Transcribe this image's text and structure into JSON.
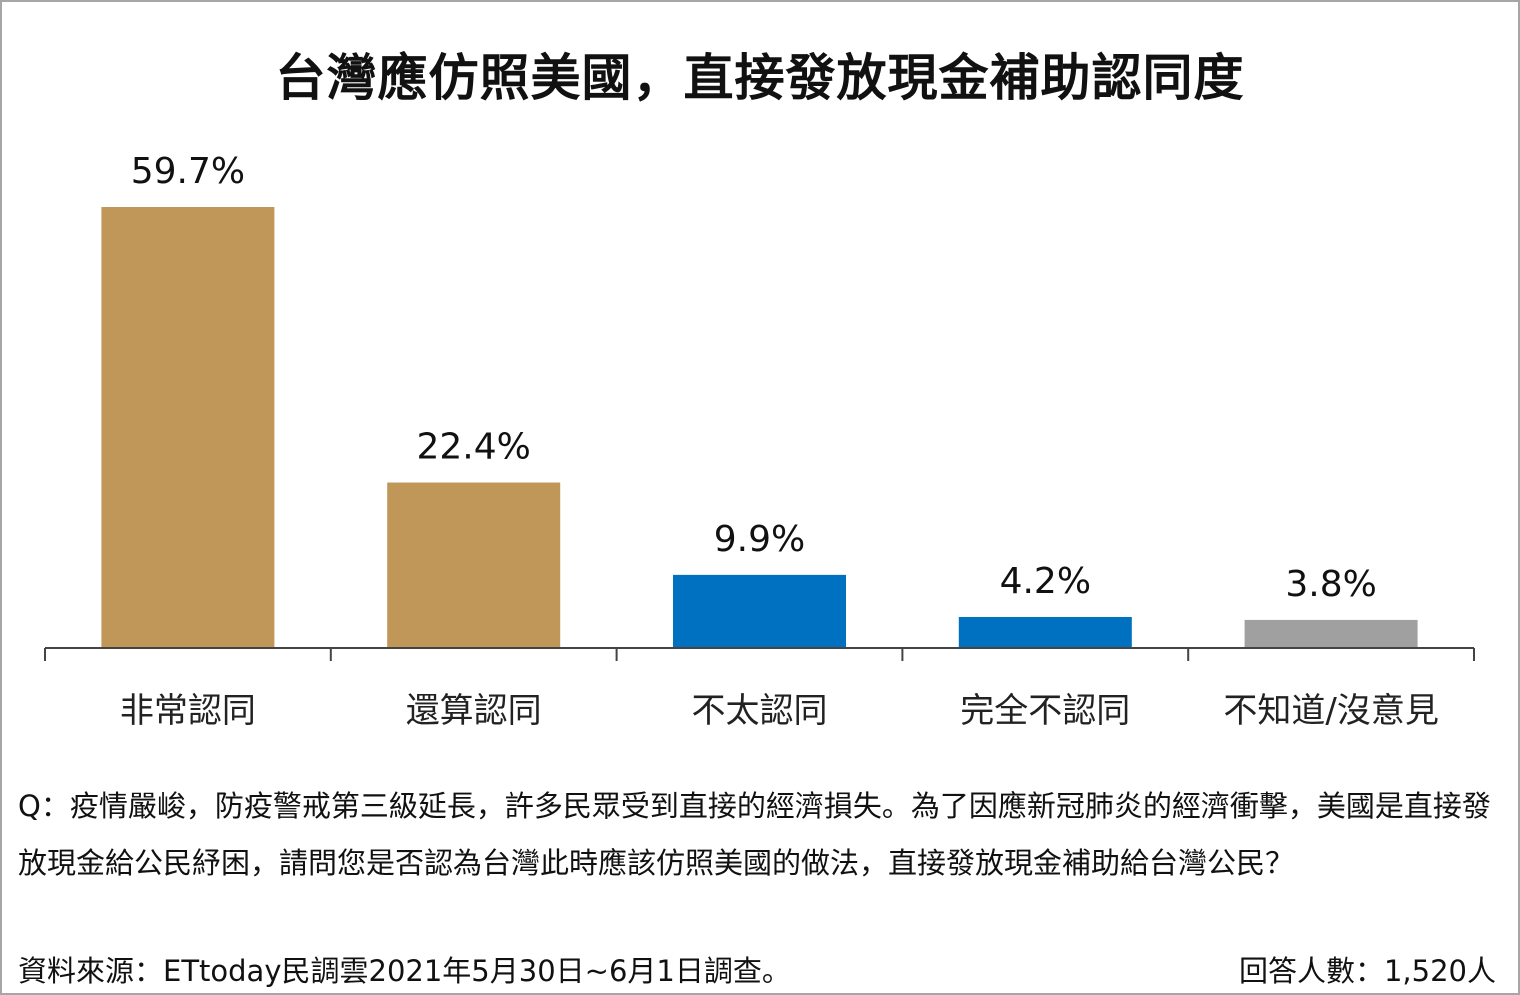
{
  "chart_data": {
    "type": "bar",
    "title": "台灣應仿照美國，直接發放現金補助認同度",
    "categories": [
      "非常認同",
      "還算認同",
      "不太認同",
      "完全不認同",
      "不知道/沒意見"
    ],
    "values": [
      59.7,
      22.4,
      9.9,
      4.2,
      3.8
    ],
    "data_labels": [
      "59.7%",
      "22.4%",
      "9.9%",
      "4.2%",
      "3.8%"
    ],
    "colors": [
      "#C09659",
      "#C09659",
      "#0070C0",
      "#0070C0",
      "#A0A0A0"
    ],
    "unit": "%",
    "grid": false,
    "legend": "none",
    "ylim": [
      0,
      60
    ]
  },
  "question": "Q：疫情嚴峻，防疫警戒第三級延長，許多民眾受到直接的經濟損失。為了因應新冠肺炎的經濟衝擊，美國是直接發放現金給公民紓困，請問您是否認為台灣此時應該仿照美國的做法，直接發放現金補助給台灣公民？",
  "source": "資料來源：ETtoday民調雲2021年5月30日~6月1日調查。",
  "respondents": "回答人數：1,520人"
}
